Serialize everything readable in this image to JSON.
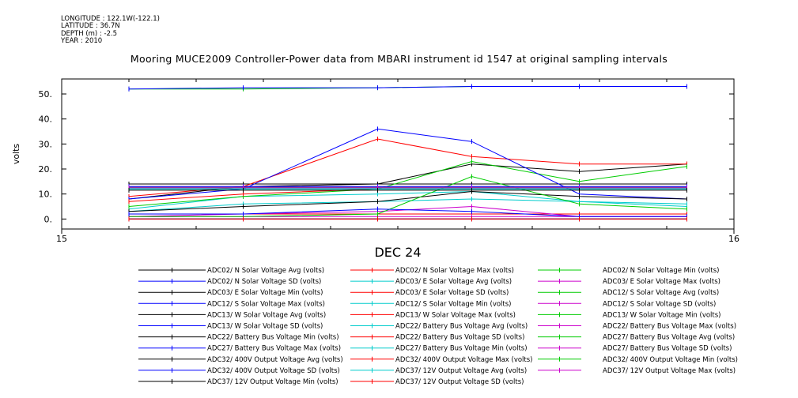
{
  "meta": {
    "longitude": "LONGITUDE : 122.1W(-122.1)",
    "latitude": "LATITUDE : 36.7N",
    "depth": "DEPTH (m) : -2.5",
    "year": "YEAR : 2010"
  },
  "chart_data": {
    "type": "line",
    "title": "Mooring MUCE2009 Controller-Power data from MBARI instrument id 1547 at original sampling intervals",
    "xlabel": "DEC 24",
    "ylabel": "volts",
    "x_tick_labels": [
      "15",
      "16"
    ],
    "x_range_hours": [
      15,
      16
    ],
    "y_tick_labels": [
      "0.",
      "10.",
      "20.",
      "30.",
      "40.",
      "50."
    ],
    "ylim": [
      -4,
      56
    ],
    "x": [
      15.1,
      15.27,
      15.47,
      15.61,
      15.77,
      15.93
    ],
    "series": [
      {
        "name": "ADC02/ N Solar Voltage Avg (volts)",
        "color": "#000000",
        "values": [
          14,
          14,
          14,
          14,
          14,
          14
        ]
      },
      {
        "name": "ADC02/ N Solar Voltage Max (volts)",
        "color": "#ff0000",
        "values": [
          2,
          2,
          2,
          2,
          2,
          2
        ]
      },
      {
        "name": "ADC02/ N Solar Voltage Min (volts)",
        "color": "#00cc00",
        "values": [
          52,
          52,
          52.5,
          53,
          53,
          53
        ]
      },
      {
        "name": "ADC02/ N Solar Voltage SD (volts)",
        "color": "#0000ff",
        "values": [
          52,
          52.5,
          52.5,
          53,
          53,
          53
        ]
      },
      {
        "name": "ADC03/ E Solar Voltage Avg (volts)",
        "color": "#00cccc",
        "values": [
          4,
          9,
          10,
          11,
          7,
          5
        ]
      },
      {
        "name": "ADC03/ E Solar Voltage Max (volts)",
        "color": "#cc00cc",
        "values": [
          1,
          2,
          3,
          5,
          1,
          1
        ]
      },
      {
        "name": "ADC03/ E Solar Voltage Min (volts)",
        "color": "#000000",
        "values": [
          8,
          13,
          14,
          22,
          19,
          22
        ]
      },
      {
        "name": "ADC03/ E Solar Voltage SD (volts)",
        "color": "#ff0000",
        "values": [
          9,
          13,
          32,
          25,
          22,
          22
        ]
      },
      {
        "name": "ADC12/ S Solar Voltage Avg (volts)",
        "color": "#00cc00",
        "values": [
          5,
          9,
          12,
          23,
          15,
          21
        ]
      },
      {
        "name": "ADC12/ S Solar Voltage Max (volts)",
        "color": "#0000ff",
        "values": [
          8,
          12,
          36,
          31,
          10,
          8
        ]
      },
      {
        "name": "ADC12/ S Solar Voltage Min (volts)",
        "color": "#00cccc",
        "values": [
          3,
          6,
          7,
          8,
          7,
          6
        ]
      },
      {
        "name": "ADC12/ S Solar Voltage SD (volts)",
        "color": "#cc00cc",
        "values": [
          1,
          1,
          1,
          1,
          1,
          1
        ]
      },
      {
        "name": "ADC13/ W Solar Voltage Avg (volts)",
        "color": "#000000",
        "values": [
          3,
          5,
          7,
          11,
          9,
          8
        ]
      },
      {
        "name": "ADC13/ W Solar Voltage Max (volts)",
        "color": "#ff0000",
        "values": [
          7,
          10,
          12,
          12,
          12,
          12
        ]
      },
      {
        "name": "ADC13/ W Solar Voltage Min (volts)",
        "color": "#00cc00",
        "values": [
          1,
          1,
          2,
          17,
          6,
          4
        ]
      },
      {
        "name": "ADC13/ W Solar Voltage SD (volts)",
        "color": "#0000ff",
        "values": [
          2,
          2,
          4,
          3,
          1,
          1
        ]
      },
      {
        "name": "ADC22/ Battery Bus Voltage Avg (volts)",
        "color": "#00cccc",
        "values": [
          12.5,
          12.5,
          12.5,
          12.5,
          12.5,
          12.5
        ]
      },
      {
        "name": "ADC22/ Battery Bus Voltage Max (volts)",
        "color": "#cc00cc",
        "values": [
          13,
          13,
          13,
          13,
          13,
          13
        ]
      },
      {
        "name": "ADC22/ Battery Bus Voltage Min (volts)",
        "color": "#000000",
        "values": [
          12,
          12,
          12,
          12,
          12,
          12
        ]
      },
      {
        "name": "ADC22/ Battery Bus Voltage SD (volts)",
        "color": "#ff0000",
        "values": [
          0,
          0,
          0,
          0,
          0,
          0
        ]
      },
      {
        "name": "ADC27/ Battery Bus Voltage Avg (volts)",
        "color": "#00cc00",
        "values": [
          12.6,
          12.6,
          12.6,
          12.6,
          12.6,
          12.6
        ]
      },
      {
        "name": "ADC27/ Battery Bus Voltage Max (volts)",
        "color": "#0000ff",
        "values": [
          13,
          13,
          13,
          13,
          13,
          13
        ]
      },
      {
        "name": "ADC27/ Battery Bus Voltage Min (volts)",
        "color": "#00cccc",
        "values": [
          12,
          12,
          12,
          12,
          12,
          12
        ]
      },
      {
        "name": "ADC27/ Battery Bus Voltage SD (volts)",
        "color": "#cc00cc",
        "values": [
          0,
          0,
          0,
          0,
          0,
          0
        ]
      },
      {
        "name": "ADC32/ 400V Output Voltage Avg (volts)",
        "color": "#000000",
        "values": [
          0,
          0,
          0,
          0,
          0,
          0
        ]
      },
      {
        "name": "ADC32/ 400V Output Voltage Max (volts)",
        "color": "#ff0000",
        "values": [
          0,
          0,
          0,
          0,
          0,
          0
        ]
      },
      {
        "name": "ADC32/ 400V Output Voltage Min (volts)",
        "color": "#00cc00",
        "values": [
          0,
          0,
          0,
          0,
          0,
          0
        ]
      },
      {
        "name": "ADC32/ 400V Output Voltage SD (volts)",
        "color": "#0000ff",
        "values": [
          0,
          0,
          0,
          0,
          0,
          0
        ]
      },
      {
        "name": "ADC37/ 12V Output Voltage Avg (volts)",
        "color": "#00cccc",
        "values": [
          12,
          12,
          12,
          12,
          12,
          12
        ]
      },
      {
        "name": "ADC37/ 12V Output Voltage Max (volts)",
        "color": "#cc00cc",
        "values": [
          12.5,
          12.5,
          12.5,
          12.5,
          12.5,
          12.5
        ]
      },
      {
        "name": "ADC37/ 12V Output Voltage Min (volts)",
        "color": "#000000",
        "values": [
          11.5,
          11.5,
          11.5,
          11.5,
          11.5,
          11.5
        ]
      },
      {
        "name": "ADC37/ 12V Output Voltage SD (volts)",
        "color": "#ff0000",
        "values": [
          0,
          0,
          0,
          0,
          0,
          0
        ]
      }
    ],
    "grid": false,
    "legend_position": "bottom"
  }
}
